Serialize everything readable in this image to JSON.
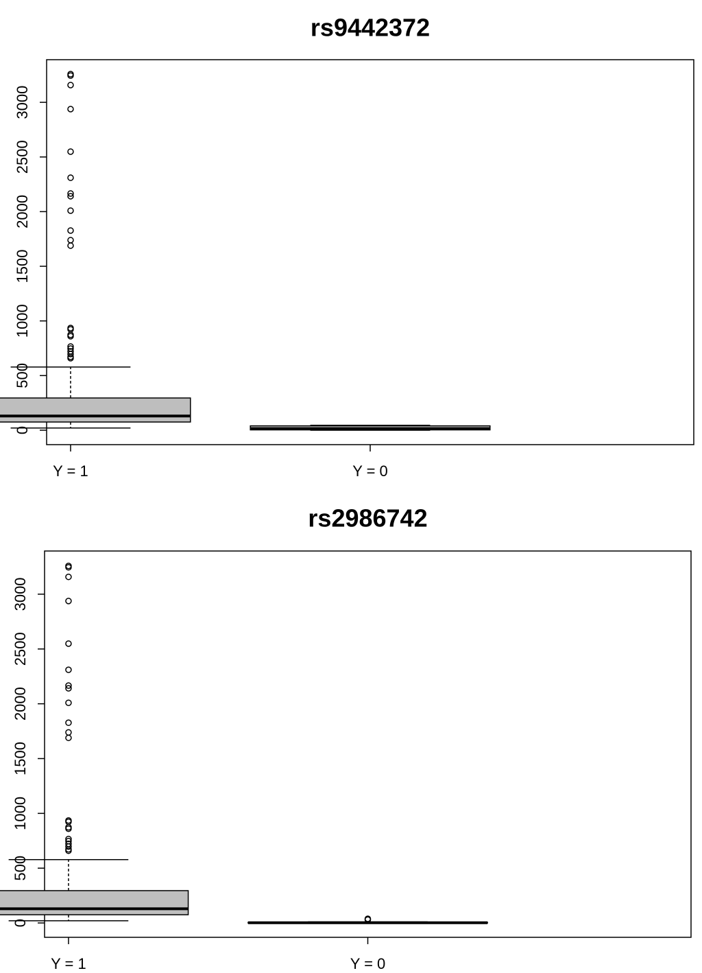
{
  "chart_data": [
    {
      "type": "box",
      "title": "rs9442372",
      "categories": [
        "Y = 1",
        "Y = 0"
      ],
      "boxes": [
        {
          "min": 20,
          "q1": 75,
          "median": 130,
          "q3": 295,
          "max": 578,
          "outliers": [
            3258,
            3245,
            3158,
            2938,
            2549,
            2310,
            2166,
            2141,
            2009,
            1827,
            1739,
            1689,
            935,
            923,
            873,
            860,
            766,
            747,
            722,
            697,
            672,
            659
          ]
        },
        {
          "min": 0,
          "q1": 3,
          "median": 15,
          "q3": 40,
          "max": 45,
          "outliers": []
        }
      ],
      "color": "#bebebe",
      "ylim": [
        -132,
        3390
      ],
      "yticks": [
        0,
        500,
        1000,
        1500,
        2000,
        2500,
        3000
      ]
    },
    {
      "type": "box",
      "title": "rs2986742",
      "categories": [
        "Y = 1",
        "Y = 0"
      ],
      "boxes": [
        {
          "min": 20,
          "q1": 75,
          "median": 130,
          "q3": 295,
          "max": 578,
          "outliers": [
            3258,
            3245,
            3158,
            2938,
            2549,
            2310,
            2166,
            2141,
            2009,
            1827,
            1739,
            1689,
            935,
            923,
            873,
            860,
            766,
            747,
            722,
            697,
            672,
            659
          ]
        },
        {
          "min": 0,
          "q1": 0,
          "median": 2,
          "q3": 5,
          "max": 10,
          "outliers": [
            30,
            38
          ]
        }
      ],
      "color": "#bebebe",
      "ylim": [
        -131,
        3394
      ],
      "yticks": [
        0,
        500,
        1000,
        1500,
        2000,
        2500,
        3000
      ]
    }
  ]
}
